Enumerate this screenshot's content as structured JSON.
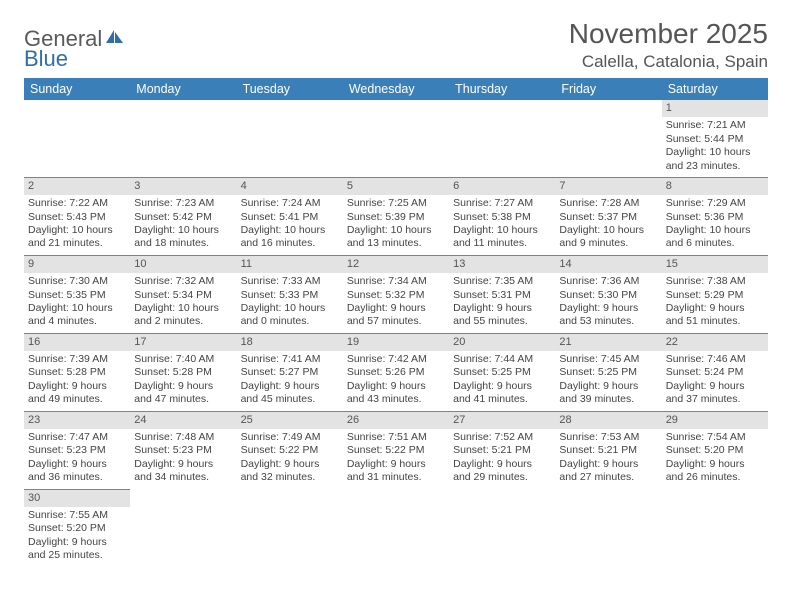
{
  "logo": {
    "text1": "General",
    "text2": "Blue"
  },
  "title": "November 2025",
  "location": "Calella, Catalonia, Spain",
  "colors": {
    "header_bg": "#3b7fb8",
    "header_text": "#ffffff",
    "daynum_bg": "#e3e3e3",
    "border": "#5a8bbf",
    "body_text": "#444444",
    "title_text": "#555555"
  },
  "typography": {
    "month_title_pt": 28,
    "location_pt": 17,
    "dayheader_pt": 12.5,
    "cell_pt": 10.5,
    "daynum_pt": 11
  },
  "day_headers": [
    "Sunday",
    "Monday",
    "Tuesday",
    "Wednesday",
    "Thursday",
    "Friday",
    "Saturday"
  ],
  "weeks": [
    {
      "nums": [
        "",
        "",
        "",
        "",
        "",
        "",
        "1"
      ],
      "cells": [
        null,
        null,
        null,
        null,
        null,
        null,
        {
          "sunrise": "Sunrise: 7:21 AM",
          "sunset": "Sunset: 5:44 PM",
          "day1": "Daylight: 10 hours",
          "day2": "and 23 minutes."
        }
      ]
    },
    {
      "nums": [
        "2",
        "3",
        "4",
        "5",
        "6",
        "7",
        "8"
      ],
      "cells": [
        {
          "sunrise": "Sunrise: 7:22 AM",
          "sunset": "Sunset: 5:43 PM",
          "day1": "Daylight: 10 hours",
          "day2": "and 21 minutes."
        },
        {
          "sunrise": "Sunrise: 7:23 AM",
          "sunset": "Sunset: 5:42 PM",
          "day1": "Daylight: 10 hours",
          "day2": "and 18 minutes."
        },
        {
          "sunrise": "Sunrise: 7:24 AM",
          "sunset": "Sunset: 5:41 PM",
          "day1": "Daylight: 10 hours",
          "day2": "and 16 minutes."
        },
        {
          "sunrise": "Sunrise: 7:25 AM",
          "sunset": "Sunset: 5:39 PM",
          "day1": "Daylight: 10 hours",
          "day2": "and 13 minutes."
        },
        {
          "sunrise": "Sunrise: 7:27 AM",
          "sunset": "Sunset: 5:38 PM",
          "day1": "Daylight: 10 hours",
          "day2": "and 11 minutes."
        },
        {
          "sunrise": "Sunrise: 7:28 AM",
          "sunset": "Sunset: 5:37 PM",
          "day1": "Daylight: 10 hours",
          "day2": "and 9 minutes."
        },
        {
          "sunrise": "Sunrise: 7:29 AM",
          "sunset": "Sunset: 5:36 PM",
          "day1": "Daylight: 10 hours",
          "day2": "and 6 minutes."
        }
      ]
    },
    {
      "nums": [
        "9",
        "10",
        "11",
        "12",
        "13",
        "14",
        "15"
      ],
      "cells": [
        {
          "sunrise": "Sunrise: 7:30 AM",
          "sunset": "Sunset: 5:35 PM",
          "day1": "Daylight: 10 hours",
          "day2": "and 4 minutes."
        },
        {
          "sunrise": "Sunrise: 7:32 AM",
          "sunset": "Sunset: 5:34 PM",
          "day1": "Daylight: 10 hours",
          "day2": "and 2 minutes."
        },
        {
          "sunrise": "Sunrise: 7:33 AM",
          "sunset": "Sunset: 5:33 PM",
          "day1": "Daylight: 10 hours",
          "day2": "and 0 minutes."
        },
        {
          "sunrise": "Sunrise: 7:34 AM",
          "sunset": "Sunset: 5:32 PM",
          "day1": "Daylight: 9 hours",
          "day2": "and 57 minutes."
        },
        {
          "sunrise": "Sunrise: 7:35 AM",
          "sunset": "Sunset: 5:31 PM",
          "day1": "Daylight: 9 hours",
          "day2": "and 55 minutes."
        },
        {
          "sunrise": "Sunrise: 7:36 AM",
          "sunset": "Sunset: 5:30 PM",
          "day1": "Daylight: 9 hours",
          "day2": "and 53 minutes."
        },
        {
          "sunrise": "Sunrise: 7:38 AM",
          "sunset": "Sunset: 5:29 PM",
          "day1": "Daylight: 9 hours",
          "day2": "and 51 minutes."
        }
      ]
    },
    {
      "nums": [
        "16",
        "17",
        "18",
        "19",
        "20",
        "21",
        "22"
      ],
      "cells": [
        {
          "sunrise": "Sunrise: 7:39 AM",
          "sunset": "Sunset: 5:28 PM",
          "day1": "Daylight: 9 hours",
          "day2": "and 49 minutes."
        },
        {
          "sunrise": "Sunrise: 7:40 AM",
          "sunset": "Sunset: 5:28 PM",
          "day1": "Daylight: 9 hours",
          "day2": "and 47 minutes."
        },
        {
          "sunrise": "Sunrise: 7:41 AM",
          "sunset": "Sunset: 5:27 PM",
          "day1": "Daylight: 9 hours",
          "day2": "and 45 minutes."
        },
        {
          "sunrise": "Sunrise: 7:42 AM",
          "sunset": "Sunset: 5:26 PM",
          "day1": "Daylight: 9 hours",
          "day2": "and 43 minutes."
        },
        {
          "sunrise": "Sunrise: 7:44 AM",
          "sunset": "Sunset: 5:25 PM",
          "day1": "Daylight: 9 hours",
          "day2": "and 41 minutes."
        },
        {
          "sunrise": "Sunrise: 7:45 AM",
          "sunset": "Sunset: 5:25 PM",
          "day1": "Daylight: 9 hours",
          "day2": "and 39 minutes."
        },
        {
          "sunrise": "Sunrise: 7:46 AM",
          "sunset": "Sunset: 5:24 PM",
          "day1": "Daylight: 9 hours",
          "day2": "and 37 minutes."
        }
      ]
    },
    {
      "nums": [
        "23",
        "24",
        "25",
        "26",
        "27",
        "28",
        "29"
      ],
      "cells": [
        {
          "sunrise": "Sunrise: 7:47 AM",
          "sunset": "Sunset: 5:23 PM",
          "day1": "Daylight: 9 hours",
          "day2": "and 36 minutes."
        },
        {
          "sunrise": "Sunrise: 7:48 AM",
          "sunset": "Sunset: 5:23 PM",
          "day1": "Daylight: 9 hours",
          "day2": "and 34 minutes."
        },
        {
          "sunrise": "Sunrise: 7:49 AM",
          "sunset": "Sunset: 5:22 PM",
          "day1": "Daylight: 9 hours",
          "day2": "and 32 minutes."
        },
        {
          "sunrise": "Sunrise: 7:51 AM",
          "sunset": "Sunset: 5:22 PM",
          "day1": "Daylight: 9 hours",
          "day2": "and 31 minutes."
        },
        {
          "sunrise": "Sunrise: 7:52 AM",
          "sunset": "Sunset: 5:21 PM",
          "day1": "Daylight: 9 hours",
          "day2": "and 29 minutes."
        },
        {
          "sunrise": "Sunrise: 7:53 AM",
          "sunset": "Sunset: 5:21 PM",
          "day1": "Daylight: 9 hours",
          "day2": "and 27 minutes."
        },
        {
          "sunrise": "Sunrise: 7:54 AM",
          "sunset": "Sunset: 5:20 PM",
          "day1": "Daylight: 9 hours",
          "day2": "and 26 minutes."
        }
      ]
    },
    {
      "nums": [
        "30",
        "",
        "",
        "",
        "",
        "",
        ""
      ],
      "cells": [
        {
          "sunrise": "Sunrise: 7:55 AM",
          "sunset": "Sunset: 5:20 PM",
          "day1": "Daylight: 9 hours",
          "day2": "and 25 minutes."
        },
        null,
        null,
        null,
        null,
        null,
        null
      ]
    }
  ]
}
